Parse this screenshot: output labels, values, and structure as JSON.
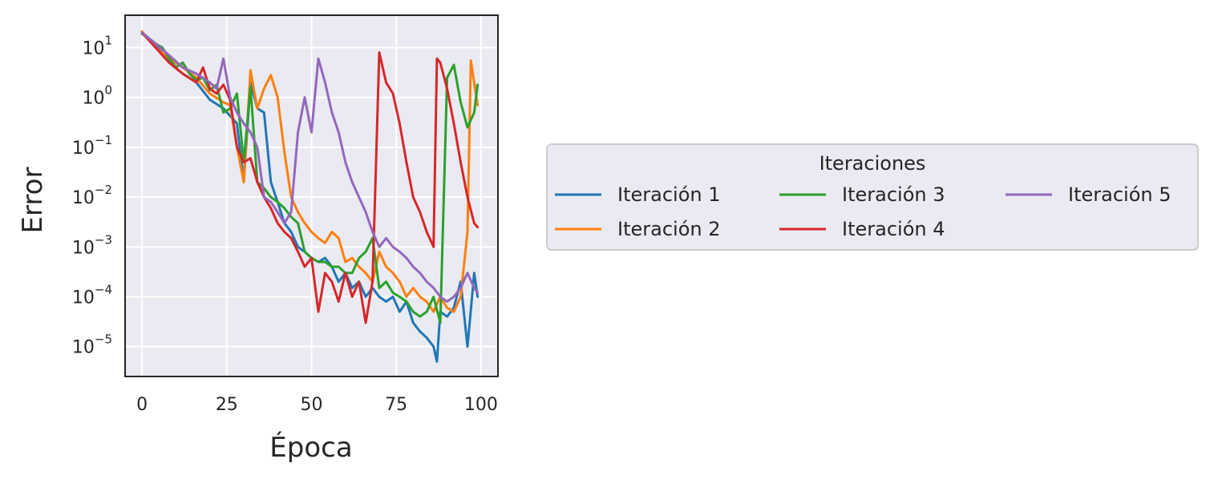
{
  "chart_data": {
    "type": "line",
    "xlabel": "Época",
    "ylabel": "Error",
    "xlim": [
      -5,
      105
    ],
    "ylim_log10": [
      -5.6,
      1.65
    ],
    "y_scale": "log",
    "grid": true,
    "xticks": [
      0,
      25,
      50,
      75,
      100
    ],
    "yticks": [
      {
        "value": 10,
        "base": "10",
        "exp": "1"
      },
      {
        "value": 1,
        "base": "10",
        "exp": "0"
      },
      {
        "value": 0.1,
        "base": "10",
        "exp": "−1"
      },
      {
        "value": 0.01,
        "base": "10",
        "exp": "−2"
      },
      {
        "value": 0.001,
        "base": "10",
        "exp": "−3"
      },
      {
        "value": 0.0001,
        "base": "10",
        "exp": "−4"
      },
      {
        "value": 1e-05,
        "base": "10",
        "exp": "−5"
      }
    ],
    "legend": {
      "title": "Iteraciones",
      "placement": "right",
      "columns": 3
    },
    "series": [
      {
        "name": "Iteración 1",
        "color": "#1f77b4",
        "points": [
          [
            0,
            20
          ],
          [
            4,
            12
          ],
          [
            8,
            5
          ],
          [
            12,
            3
          ],
          [
            16,
            2
          ],
          [
            20,
            0.9
          ],
          [
            24,
            0.6
          ],
          [
            28,
            0.3
          ],
          [
            30,
            0.02
          ],
          [
            32,
            2
          ],
          [
            34,
            0.6
          ],
          [
            36,
            0.5
          ],
          [
            38,
            0.02
          ],
          [
            40,
            0.008
          ],
          [
            42,
            0.003
          ],
          [
            44,
            0.002
          ],
          [
            46,
            0.001
          ],
          [
            48,
            0.0008
          ],
          [
            50,
            0.0006
          ],
          [
            52,
            0.0005
          ],
          [
            54,
            0.0006
          ],
          [
            56,
            0.0004
          ],
          [
            58,
            0.0002
          ],
          [
            60,
            0.0003
          ],
          [
            62,
            0.00015
          ],
          [
            64,
            0.0002
          ],
          [
            66,
            0.0001
          ],
          [
            68,
            0.00015
          ],
          [
            70,
            0.0001
          ],
          [
            72,
            8e-05
          ],
          [
            74,
            0.0001
          ],
          [
            76,
            5e-05
          ],
          [
            78,
            8e-05
          ],
          [
            80,
            3e-05
          ],
          [
            82,
            2e-05
          ],
          [
            84,
            1.5e-05
          ],
          [
            86,
            1e-05
          ],
          [
            87,
            5e-06
          ],
          [
            88,
            5e-05
          ],
          [
            90,
            4e-05
          ],
          [
            92,
            6e-05
          ],
          [
            94,
            0.0002
          ],
          [
            96,
            1e-05
          ],
          [
            98,
            0.0003
          ],
          [
            99,
            0.0001
          ]
        ]
      },
      {
        "name": "Iteración 2",
        "color": "#ff7f0e",
        "points": [
          [
            0,
            21
          ],
          [
            4,
            10
          ],
          [
            8,
            6
          ],
          [
            12,
            4
          ],
          [
            16,
            2.5
          ],
          [
            20,
            1.2
          ],
          [
            24,
            0.8
          ],
          [
            26,
            0.7
          ],
          [
            28,
            0.1
          ],
          [
            30,
            0.02
          ],
          [
            32,
            3.5
          ],
          [
            34,
            0.6
          ],
          [
            36,
            1.5
          ],
          [
            38,
            2.8
          ],
          [
            40,
            1
          ],
          [
            42,
            0.08
          ],
          [
            44,
            0.01
          ],
          [
            46,
            0.005
          ],
          [
            48,
            0.003
          ],
          [
            50,
            0.002
          ],
          [
            52,
            0.0015
          ],
          [
            54,
            0.0012
          ],
          [
            56,
            0.002
          ],
          [
            58,
            0.0015
          ],
          [
            60,
            0.0005
          ],
          [
            62,
            0.0006
          ],
          [
            64,
            0.0004
          ],
          [
            66,
            0.0003
          ],
          [
            68,
            0.0002
          ],
          [
            70,
            0.0008
          ],
          [
            72,
            0.0004
          ],
          [
            74,
            0.0003
          ],
          [
            76,
            0.0002
          ],
          [
            78,
            0.0001
          ],
          [
            80,
            0.00015
          ],
          [
            82,
            0.0001
          ],
          [
            84,
            8e-05
          ],
          [
            86,
            5e-05
          ],
          [
            88,
            0.0001
          ],
          [
            90,
            6e-05
          ],
          [
            92,
            5e-05
          ],
          [
            94,
            0.0001
          ],
          [
            96,
            0.002
          ],
          [
            97,
            5.5
          ],
          [
            99,
            0.7
          ]
        ]
      },
      {
        "name": "Iteración 3",
        "color": "#2ca02c",
        "points": [
          [
            0,
            19
          ],
          [
            4,
            12
          ],
          [
            6,
            10
          ],
          [
            8,
            6
          ],
          [
            10,
            4
          ],
          [
            12,
            5
          ],
          [
            14,
            3
          ],
          [
            16,
            2.2
          ],
          [
            18,
            2.5
          ],
          [
            20,
            1.4
          ],
          [
            22,
            1.8
          ],
          [
            24,
            0.5
          ],
          [
            26,
            0.6
          ],
          [
            28,
            1.2
          ],
          [
            30,
            0.05
          ],
          [
            32,
            1.6
          ],
          [
            34,
            0.02
          ],
          [
            36,
            0.015
          ],
          [
            38,
            0.01
          ],
          [
            40,
            0.008
          ],
          [
            42,
            0.006
          ],
          [
            44,
            0.004
          ],
          [
            46,
            0.003
          ],
          [
            48,
            0.0008
          ],
          [
            50,
            0.0006
          ],
          [
            52,
            0.0005
          ],
          [
            54,
            0.0005
          ],
          [
            56,
            0.0004
          ],
          [
            58,
            0.0004
          ],
          [
            60,
            0.0003
          ],
          [
            62,
            0.0003
          ],
          [
            64,
            0.0006
          ],
          [
            66,
            0.0008
          ],
          [
            68,
            0.0015
          ],
          [
            70,
            0.00015
          ],
          [
            72,
            0.0002
          ],
          [
            74,
            0.00012
          ],
          [
            76,
            0.0001
          ],
          [
            78,
            8e-05
          ],
          [
            80,
            5e-05
          ],
          [
            82,
            4e-05
          ],
          [
            84,
            5e-05
          ],
          [
            86,
            0.0001
          ],
          [
            88,
            3e-05
          ],
          [
            90,
            2.5
          ],
          [
            92,
            4.5
          ],
          [
            94,
            0.8
          ],
          [
            96,
            0.25
          ],
          [
            98,
            0.5
          ],
          [
            99,
            1.8
          ]
        ]
      },
      {
        "name": "Iteración 4",
        "color": "#d62728",
        "points": [
          [
            0,
            20
          ],
          [
            4,
            10
          ],
          [
            8,
            5
          ],
          [
            12,
            3
          ],
          [
            16,
            2
          ],
          [
            18,
            4
          ],
          [
            20,
            1.5
          ],
          [
            22,
            1.2
          ],
          [
            24,
            1.8
          ],
          [
            26,
            0.9
          ],
          [
            28,
            0.1
          ],
          [
            30,
            0.05
          ],
          [
            32,
            0.06
          ],
          [
            34,
            0.02
          ],
          [
            36,
            0.01
          ],
          [
            38,
            0.006
          ],
          [
            40,
            0.003
          ],
          [
            42,
            0.002
          ],
          [
            44,
            0.0015
          ],
          [
            46,
            0.0008
          ],
          [
            48,
            0.0004
          ],
          [
            50,
            0.0006
          ],
          [
            52,
            5e-05
          ],
          [
            54,
            0.0003
          ],
          [
            56,
            0.0002
          ],
          [
            58,
            8e-05
          ],
          [
            60,
            0.0003
          ],
          [
            62,
            0.0001
          ],
          [
            64,
            0.0002
          ],
          [
            66,
            3e-05
          ],
          [
            68,
            0.0002
          ],
          [
            70,
            8
          ],
          [
            72,
            2
          ],
          [
            74,
            1.2
          ],
          [
            76,
            0.3
          ],
          [
            78,
            0.05
          ],
          [
            80,
            0.01
          ],
          [
            82,
            0.005
          ],
          [
            84,
            0.002
          ],
          [
            86,
            0.001
          ],
          [
            87,
            6
          ],
          [
            88,
            5
          ],
          [
            90,
            1.5
          ],
          [
            92,
            0.3
          ],
          [
            94,
            0.05
          ],
          [
            96,
            0.01
          ],
          [
            98,
            0.003
          ],
          [
            99,
            0.0025
          ]
        ]
      },
      {
        "name": "Iteración 5",
        "color": "#9467bd",
        "points": [
          [
            0,
            20
          ],
          [
            4,
            12
          ],
          [
            8,
            7
          ],
          [
            12,
            4
          ],
          [
            16,
            3
          ],
          [
            20,
            2
          ],
          [
            22,
            1.5
          ],
          [
            24,
            6
          ],
          [
            26,
            1
          ],
          [
            28,
            0.5
          ],
          [
            30,
            0.3
          ],
          [
            32,
            0.2
          ],
          [
            34,
            0.1
          ],
          [
            36,
            0.01
          ],
          [
            38,
            0.008
          ],
          [
            40,
            0.005
          ],
          [
            42,
            0.003
          ],
          [
            44,
            0.005
          ],
          [
            46,
            0.2
          ],
          [
            48,
            1
          ],
          [
            50,
            0.2
          ],
          [
            52,
            6
          ],
          [
            54,
            2
          ],
          [
            56,
            0.5
          ],
          [
            58,
            0.2
          ],
          [
            60,
            0.05
          ],
          [
            62,
            0.02
          ],
          [
            64,
            0.01
          ],
          [
            66,
            0.005
          ],
          [
            68,
            0.002
          ],
          [
            70,
            0.001
          ],
          [
            72,
            0.0015
          ],
          [
            74,
            0.001
          ],
          [
            76,
            0.0008
          ],
          [
            78,
            0.0006
          ],
          [
            80,
            0.0004
          ],
          [
            82,
            0.0003
          ],
          [
            84,
            0.0002
          ],
          [
            86,
            0.00015
          ],
          [
            88,
            0.0001
          ],
          [
            90,
            8e-05
          ],
          [
            92,
            0.0001
          ],
          [
            94,
            0.00015
          ],
          [
            96,
            0.0003
          ],
          [
            98,
            0.00015
          ],
          [
            99,
            0.00012
          ]
        ]
      }
    ]
  }
}
